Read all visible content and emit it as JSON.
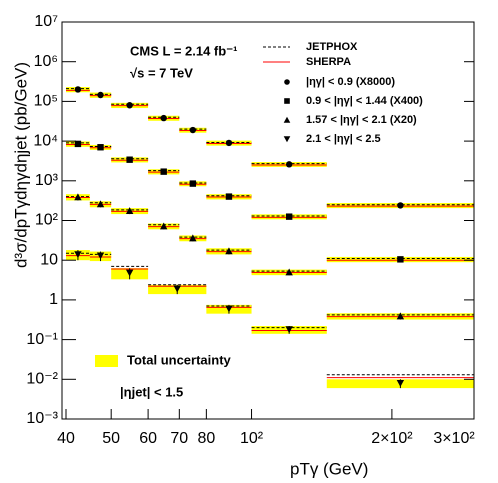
{
  "chart_data": {
    "type": "step",
    "ylabel": "d³σ/dpTγdηγdηjet (pb/GeV)",
    "xlabel": "pTγ (GeV)",
    "annotations": [
      "CMS   L = 2.14 fb⁻¹",
      "√s = 7 TeV",
      "|ηjet| < 1.5"
    ],
    "band_label": "Total uncertainty",
    "band_color": "#ffff00",
    "log_x": true,
    "log_y": true,
    "xlim": [
      40,
      300
    ],
    "ylim": [
      0.001,
      10000000
    ],
    "xticks": [
      40,
      50,
      60,
      70,
      80,
      {
        "value": 100,
        "label": "10²"
      },
      {
        "value": 200,
        "label": "2×10²"
      },
      {
        "value": 300,
        "label": "3×10²"
      }
    ],
    "yticks": [
      {
        "value": 0.001,
        "label": "10⁻³"
      },
      {
        "value": 0.01,
        "label": "10⁻²"
      },
      {
        "value": 0.1,
        "label": "10⁻¹"
      },
      1,
      10,
      {
        "value": 100,
        "label": "10²"
      },
      {
        "value": 1000,
        "label": "10³"
      },
      {
        "value": 10000,
        "label": "10⁴"
      },
      {
        "value": 100000,
        "label": "10⁵"
      },
      {
        "value": 1000000,
        "label": "10⁶"
      },
      {
        "value": 10000000,
        "label": "10⁷"
      }
    ],
    "models": [
      {
        "name": "JETPHOX",
        "color": "#000000",
        "dashed": true
      },
      {
        "name": "SHERPA",
        "color": "#ff0000",
        "dashed": false
      }
    ],
    "series": [
      {
        "name": "|ηγ| < 0.9 (X8000)",
        "marker": "circle",
        "color": "#000000",
        "bins": [
          40,
          45,
          50,
          60,
          70,
          80,
          100,
          145,
          300
        ],
        "values": [
          200000,
          145000,
          80000,
          38000,
          19000,
          9000,
          2600,
          240
        ],
        "errors": [
          30000,
          22000,
          12000,
          5500,
          2700,
          1300,
          360,
          35
        ],
        "models": [
          {
            "values": [
              210000,
              150000,
              85000,
              40000,
              20000,
              9200,
              2700,
              250
            ]
          },
          {
            "values": [
              190000,
              140000,
              78000,
              37000,
              18500,
              8700,
              2500,
              230
            ]
          }
        ]
      },
      {
        "name": "0.9 < |ηγ| < 1.44 (X400)",
        "marker": "square",
        "color": "#000000",
        "bins": [
          40,
          45,
          50,
          60,
          70,
          80,
          100,
          145,
          300
        ],
        "values": [
          8500,
          7000,
          3400,
          1700,
          850,
          400,
          125,
          10.5
        ],
        "errors": [
          1300,
          1000,
          500,
          250,
          120,
          60,
          18,
          1.6
        ],
        "models": [
          {
            "values": [
              9000,
              7300,
              3600,
              1800,
              880,
              420,
              130,
              11
            ]
          },
          {
            "values": [
              8200,
              6800,
              3300,
              1650,
              820,
              390,
              120,
              10
            ]
          }
        ]
      },
      {
        "name": "1.57 < |ηγ| < 2.1 (X20)",
        "marker": "triangle",
        "color": "#000000",
        "bins": [
          40,
          45,
          50,
          60,
          70,
          80,
          100,
          145,
          300
        ],
        "values": [
          390,
          260,
          175,
          72,
          36,
          17,
          5.0,
          0.39
        ],
        "errors": [
          70,
          45,
          30,
          12,
          6,
          3,
          0.8,
          0.07
        ],
        "models": [
          {
            "values": [
              400,
              280,
              185,
              78,
              38,
              18,
              5.3,
              0.42
            ]
          },
          {
            "values": [
              380,
              255,
              170,
              70,
              35,
              16.5,
              4.9,
              0.38
            ]
          }
        ]
      },
      {
        "name": "2.1 < |ηγ| < 2.5",
        "marker": "triangle-down",
        "color": "#000000",
        "bins": [
          40,
          45,
          50,
          60,
          80,
          100,
          145,
          300
        ],
        "values": [
          14,
          13,
          4.8,
          1.9,
          0.6,
          0.18,
          0.008
        ],
        "errors": [
          4,
          3.5,
          1.5,
          0.5,
          0.15,
          0.04,
          0.002
        ],
        "models": [
          {
            "values": [
              15,
              14,
              7,
              2.4,
              0.7,
              0.2,
              0.013
            ]
          },
          {
            "values": [
              13,
              12,
              6,
              2.2,
              0.65,
              0.17,
              0.011
            ]
          }
        ]
      }
    ]
  }
}
